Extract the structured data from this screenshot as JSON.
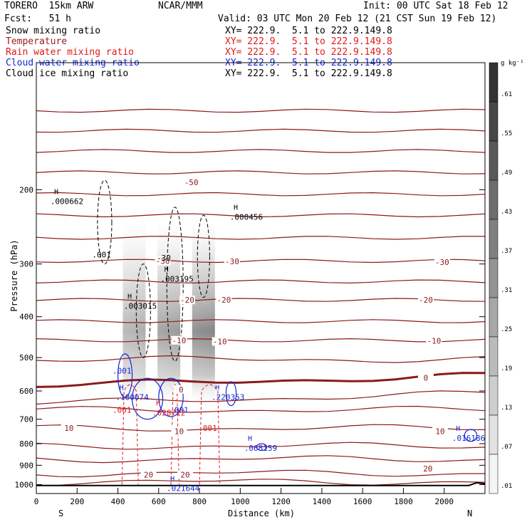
{
  "header": {
    "model": "TORERO  15km ARW",
    "org": "NCAR/MMM",
    "init": "Init: 00 UTC Sat 18 Feb 12",
    "fcst": "Fcst:   51 h",
    "valid": "Valid: 03 UTC Mon 20 Feb 12 (21 CST Sun 19 Feb 12)"
  },
  "legend": [
    {
      "name": "Snow mixing ratio",
      "xy": "XY= 222.9.  5.1 to 222.9.149.8",
      "color": "#000000"
    },
    {
      "name": "Temperature",
      "xy": "XY= 222.9.  5.1 to 222.9.149.8",
      "color": "#9b1c1c"
    },
    {
      "name": "Rain water mixing ratio",
      "xy": "XY= 222.9.  5.1 to 222.9.149.8",
      "color": "#e0191b"
    },
    {
      "name": "Cloud water mixing ratio",
      "xy": "XY= 222.9.  5.1 to 222.9.149.8",
      "color": "#1428d4"
    },
    {
      "name": "Cloud ice mixing ratio",
      "xy": "XY= 222.9.  5.1 to 222.9.149.8",
      "color": "#000000"
    }
  ],
  "colorbar": {
    "unit": "g kg⁻¹",
    "ticks": [
      ".61",
      ".55",
      ".49",
      ".43",
      ".37",
      ".31",
      ".25",
      ".19",
      ".13",
      ".07",
      ".01"
    ]
  },
  "chart_data": {
    "type": "contour cross-section",
    "xlabel": "Distance (km)",
    "ylabel": "Pressure (hPa)",
    "xlim": [
      0,
      2200
    ],
    "ylim": [
      1050,
      100
    ],
    "y_log": true,
    "x_ticks": [
      0,
      200,
      400,
      600,
      800,
      1000,
      1200,
      1400,
      1600,
      1800,
      2000
    ],
    "y_ticks": [
      200,
      300,
      400,
      500,
      600,
      700,
      800,
      900,
      1000
    ],
    "end_labels": {
      "left": "S",
      "right": "N"
    },
    "temperature_labels": [
      {
        "text": "-50",
        "x": 760,
        "p": 192
      },
      {
        "text": "-30",
        "x": 620,
        "p": 295
      },
      {
        "text": "-30",
        "x": 960,
        "p": 296
      },
      {
        "text": "-30",
        "x": 1990,
        "p": 297
      },
      {
        "text": "-20",
        "x": 740,
        "p": 365
      },
      {
        "text": "-20",
        "x": 920,
        "p": 365
      },
      {
        "text": "-20",
        "x": 1910,
        "p": 365
      },
      {
        "text": "-10",
        "x": 700,
        "p": 455
      },
      {
        "text": "-10",
        "x": 900,
        "p": 458
      },
      {
        "text": "-10",
        "x": 1950,
        "p": 456
      },
      {
        "text": "0",
        "x": 1910,
        "p": 558
      },
      {
        "text": "0",
        "x": 710,
        "p": 595
      },
      {
        "text": "10",
        "x": 160,
        "p": 735
      },
      {
        "text": "10",
        "x": 700,
        "p": 748
      },
      {
        "text": "10",
        "x": 1980,
        "p": 748
      },
      {
        "text": "20",
        "x": 550,
        "p": 947
      },
      {
        "text": "20",
        "x": 730,
        "p": 947
      },
      {
        "text": "20",
        "x": 1920,
        "p": 917
      }
    ],
    "extrema": [
      {
        "text": ".000662",
        "x": 150,
        "p": 213,
        "color": "#000000"
      },
      {
        "text": ".000456",
        "x": 1030,
        "p": 232,
        "color": "#000000"
      },
      {
        "text": ".003195",
        "x": 690,
        "p": 325,
        "color": "#000000"
      },
      {
        "text": ".003015",
        "x": 510,
        "p": 377,
        "color": "#000000"
      },
      {
        "text": ".220353",
        "x": 940,
        "p": 620,
        "color": "#1428d4"
      },
      {
        "text": ".100074",
        "x": 470,
        "p": 620,
        "color": "#1428d4"
      },
      {
        "text": ".068159",
        "x": 1100,
        "p": 818,
        "color": "#1428d4"
      },
      {
        "text": ".016186",
        "x": 2120,
        "p": 775,
        "color": "#1428d4"
      },
      {
        "text": ".021644",
        "x": 720,
        "p": 1020,
        "color": "#1428d4"
      },
      {
        "text": ".028712",
        "x": 650,
        "p": 675,
        "color": "#e0191b"
      }
    ],
    "contour_value_labels": [
      {
        "text": ".001",
        "x": 320,
        "p": 285,
        "color": "#000000"
      },
      {
        "text": ".001",
        "x": 420,
        "p": 537,
        "color": "#1428d4"
      },
      {
        "text": ".001",
        "x": 700,
        "p": 665,
        "color": "#1428d4"
      },
      {
        "text": ".001",
        "x": 420,
        "p": 665,
        "color": "#e0191b"
      },
      {
        "text": ".001",
        "x": 840,
        "p": 735,
        "color": "#e0191b"
      },
      {
        "text": "-30",
        "x": 625,
        "p": 290,
        "color": "#000000"
      }
    ],
    "snow_columns_km": [
      480,
      650,
      820
    ]
  }
}
